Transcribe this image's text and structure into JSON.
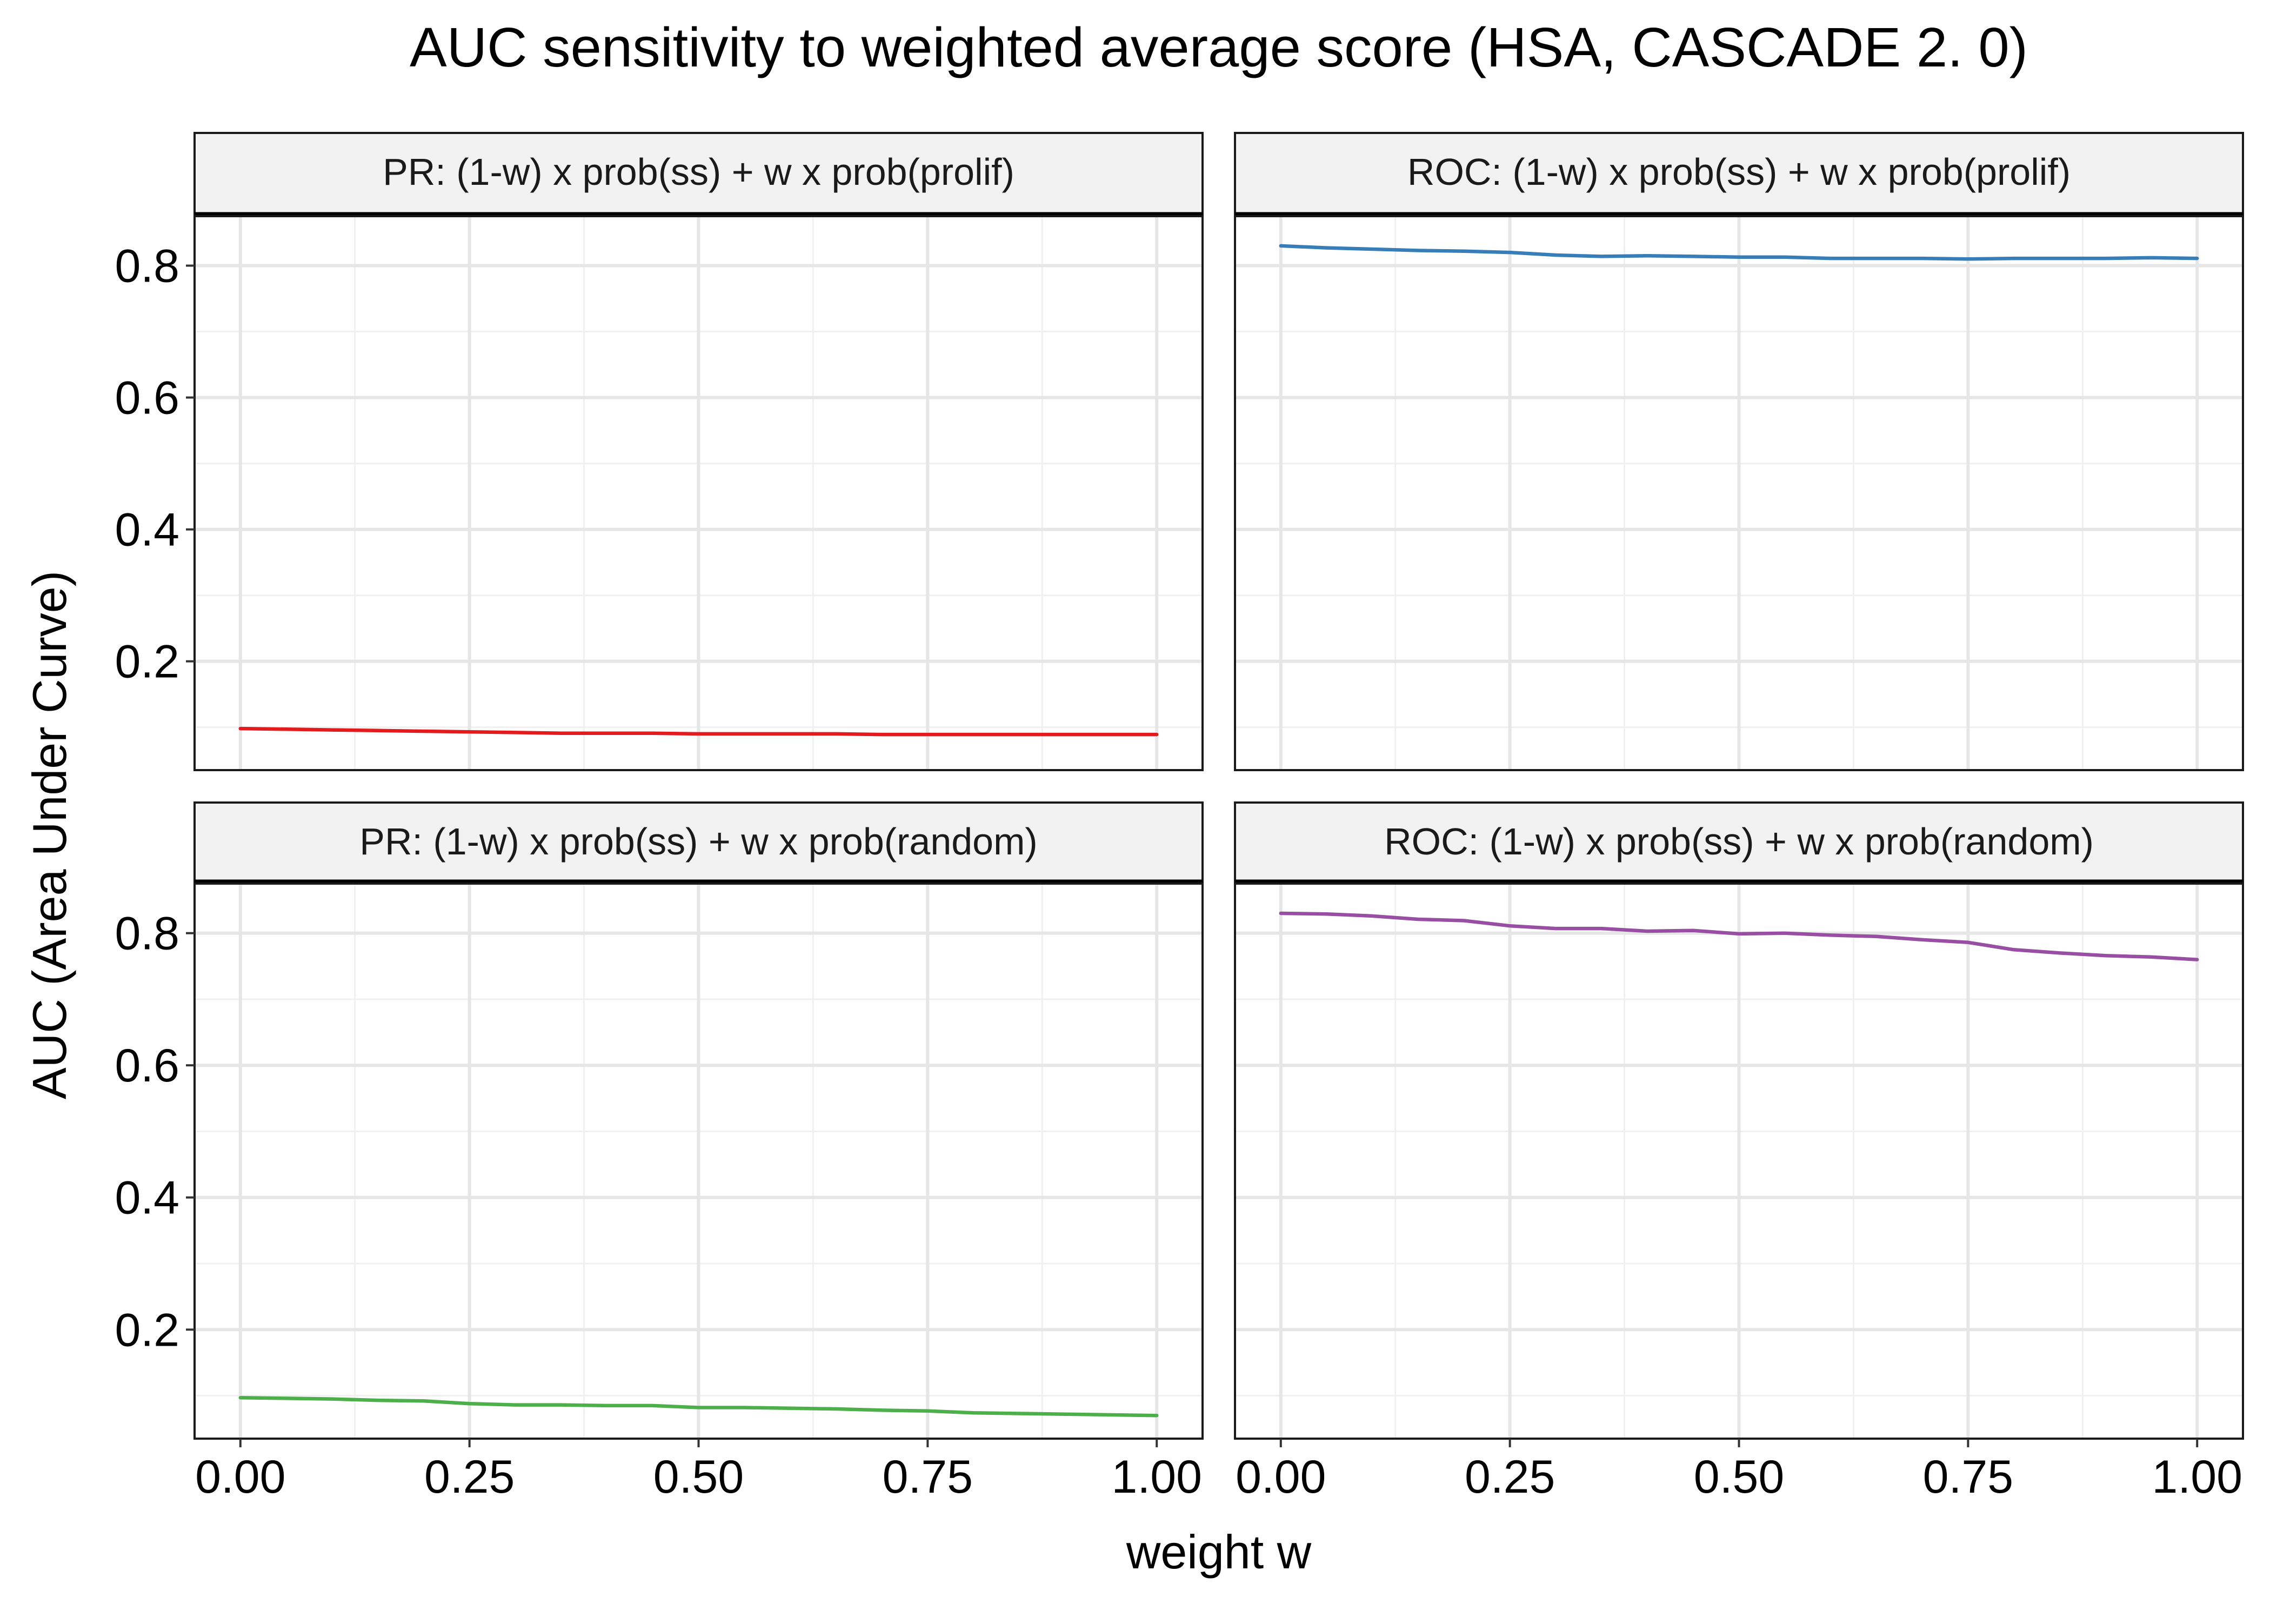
{
  "chart_data": {
    "type": "line",
    "title": "AUC sensitivity to weighted average score (HSA, CASCADE 2. 0)",
    "xlabel": "weight w",
    "ylabel": "AUC (Area Under Curve)",
    "xlim": [
      -0.05,
      1.05
    ],
    "ylim": [
      0.035,
      0.875
    ],
    "x_ticks": [
      "0.00",
      "0.25",
      "0.50",
      "0.75",
      "1.00"
    ],
    "y_ticks": [
      "0.2",
      "0.4",
      "0.6",
      "0.8"
    ],
    "grid": true,
    "legend": "none",
    "x": [
      0.0,
      0.05,
      0.1,
      0.15,
      0.2,
      0.25,
      0.3,
      0.35,
      0.4,
      0.45,
      0.5,
      0.55,
      0.6,
      0.65,
      0.7,
      0.75,
      0.8,
      0.85,
      0.9,
      0.95,
      1.0
    ],
    "panels": [
      {
        "strip": "PR: (1-w) x prob(ss) + w x prob(prolif)",
        "color": "#e41a1c",
        "values": [
          0.098,
          0.097,
          0.096,
          0.095,
          0.094,
          0.093,
          0.092,
          0.091,
          0.091,
          0.091,
          0.09,
          0.09,
          0.09,
          0.09,
          0.089,
          0.089,
          0.089,
          0.089,
          0.089,
          0.089,
          0.089
        ]
      },
      {
        "strip": "ROC: (1-w) x prob(ss) + w x prob(prolif)",
        "color": "#377eb8",
        "values": [
          0.83,
          0.827,
          0.825,
          0.823,
          0.822,
          0.82,
          0.816,
          0.814,
          0.815,
          0.814,
          0.813,
          0.813,
          0.811,
          0.811,
          0.811,
          0.81,
          0.811,
          0.811,
          0.811,
          0.812,
          0.811
        ]
      },
      {
        "strip": "PR: (1-w) x prob(ss) + w x prob(random)",
        "color": "#4daf4a",
        "values": [
          0.097,
          0.096,
          0.095,
          0.093,
          0.092,
          0.088,
          0.086,
          0.086,
          0.085,
          0.085,
          0.082,
          0.082,
          0.081,
          0.08,
          0.078,
          0.077,
          0.074,
          0.073,
          0.072,
          0.071,
          0.07
        ]
      },
      {
        "strip": "ROC: (1-w) x prob(ss) + w x prob(random)",
        "color": "#984ea3",
        "values": [
          0.83,
          0.829,
          0.826,
          0.821,
          0.819,
          0.811,
          0.807,
          0.807,
          0.803,
          0.804,
          0.799,
          0.8,
          0.797,
          0.795,
          0.79,
          0.786,
          0.775,
          0.77,
          0.766,
          0.764,
          0.76
        ]
      }
    ]
  }
}
